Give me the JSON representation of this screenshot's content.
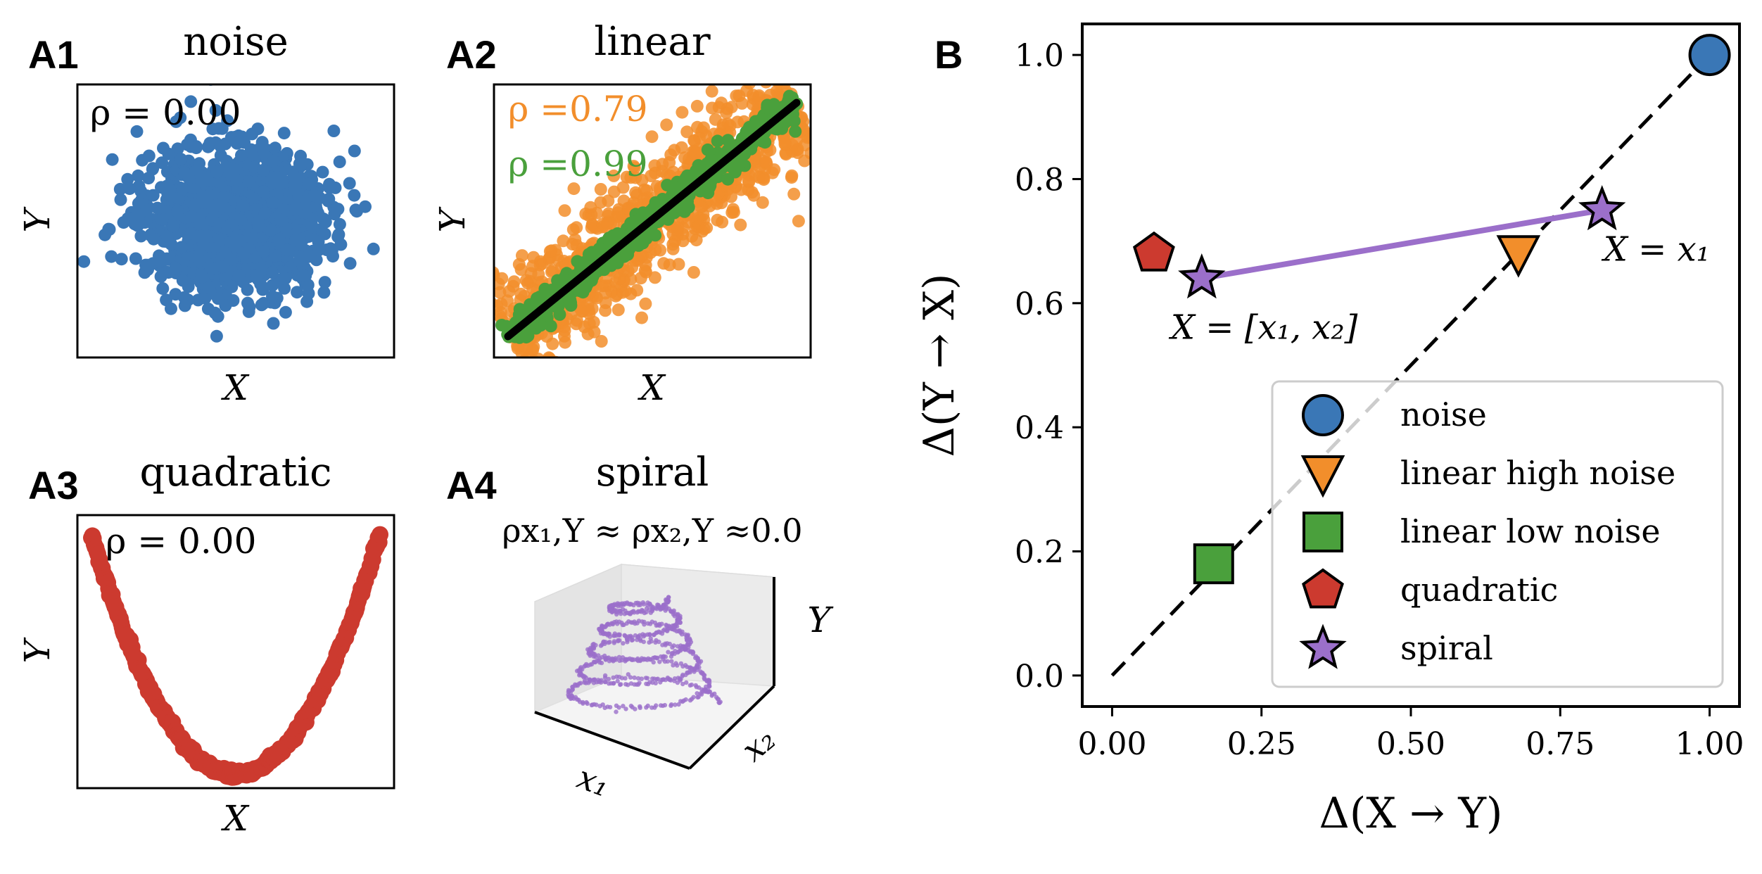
{
  "colors": {
    "noise": "#3a77b6",
    "linear_high": "#f28e2b",
    "linear_low": "#4aa03c",
    "quadratic": "#cc3a2f",
    "spiral": "#9b6fca",
    "black": "#000000"
  },
  "panels": {
    "A1": {
      "tag": "A1",
      "title": "noise",
      "xlabel": "X",
      "ylabel": "Y",
      "annotation": "ρ = 0.00"
    },
    "A2": {
      "tag": "A2",
      "title": "linear",
      "xlabel": "X",
      "ylabel": "Y",
      "annotation_high": "ρ =0.79",
      "annotation_low": "ρ =0.99"
    },
    "A3": {
      "tag": "A3",
      "title": "quadratic",
      "xlabel": "X",
      "ylabel": "Y",
      "annotation": "ρ = 0.00"
    },
    "A4": {
      "tag": "A4",
      "title": "spiral",
      "annotation": "ρx₁,Y ≈ ρx₂,Y ≈0.0",
      "xlabel": "x₁",
      "zlabel": "x₂",
      "ylabel": "Y"
    },
    "B": {
      "tag": "B"
    }
  },
  "chart_data": [
    {
      "type": "scatter",
      "panel": "A1",
      "title": "noise",
      "xlabel": "X",
      "ylabel": "Y",
      "series": [
        {
          "name": "noise",
          "distribution": "isotropic gaussian",
          "correlation": 0.0
        }
      ],
      "annotation": "ρ = 0.00"
    },
    {
      "type": "scatter",
      "panel": "A2",
      "title": "linear",
      "xlabel": "X",
      "ylabel": "Y",
      "series": [
        {
          "name": "linear high noise",
          "correlation": 0.79
        },
        {
          "name": "linear low noise",
          "correlation": 0.99
        }
      ],
      "fit_line": "y = x"
    },
    {
      "type": "scatter",
      "panel": "A3",
      "title": "quadratic",
      "xlabel": "X",
      "ylabel": "Y",
      "series": [
        {
          "name": "quadratic",
          "function": "y = x^2",
          "correlation": 0.0
        }
      ]
    },
    {
      "type": "scatter",
      "panel": "A4",
      "title": "spiral",
      "xlabel": "x1",
      "zlabel": "x2",
      "ylabel": "Y",
      "series": [
        {
          "name": "spiral",
          "turns": 5,
          "correlation": 0.0
        }
      ]
    },
    {
      "type": "scatter",
      "panel": "B",
      "xlabel": "Δ(X → Y)",
      "ylabel": "Δ(Y → X)",
      "xlim": [
        -0.05,
        1.05
      ],
      "ylim": [
        -0.05,
        1.05
      ],
      "xticks": [
        0.0,
        0.25,
        0.5,
        0.75,
        1.0
      ],
      "xtick_labels": [
        "0.00",
        "0.25",
        "0.50",
        "0.75",
        "1.00"
      ],
      "yticks": [
        0.0,
        0.2,
        0.4,
        0.6,
        0.8,
        1.0
      ],
      "ytick_labels": [
        "0.0",
        "0.2",
        "0.4",
        "0.6",
        "0.8",
        "1.0"
      ],
      "diagonal": [
        [
          0,
          0
        ],
        [
          1,
          1
        ]
      ],
      "series": [
        {
          "name": "noise",
          "marker": "circle",
          "color": "#3a77b6",
          "x": 1.0,
          "y": 1.0
        },
        {
          "name": "linear high noise",
          "marker": "triangle-down",
          "color": "#f28e2b",
          "x": 0.68,
          "y": 0.68
        },
        {
          "name": "linear low noise",
          "marker": "square",
          "color": "#4aa03c",
          "x": 0.17,
          "y": 0.18
        },
        {
          "name": "quadratic",
          "marker": "pentagon",
          "color": "#cc3a2f",
          "x": 0.07,
          "y": 0.68
        },
        {
          "name": "spiral",
          "marker": "star",
          "color": "#9b6fca",
          "x": [
            0.15,
            0.82
          ],
          "y": [
            0.64,
            0.75
          ]
        }
      ],
      "point_labels": [
        {
          "text": "X = [x₁, x₂]",
          "x": 0.15,
          "y": 0.64
        },
        {
          "text": "X = x₁",
          "x": 0.82,
          "y": 0.75
        }
      ],
      "legend": {
        "placement": "lower-right",
        "entries": [
          "noise",
          "linear high noise",
          "linear low noise",
          "quadratic",
          "spiral"
        ]
      }
    }
  ]
}
